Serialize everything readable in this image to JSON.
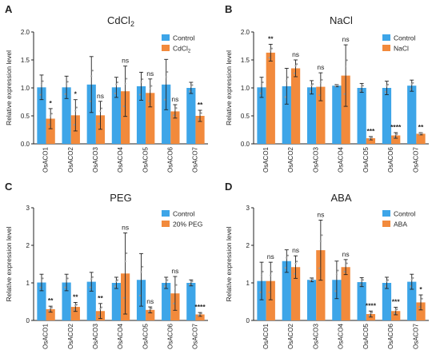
{
  "colors": {
    "control": "#3da5e8",
    "treatment": "#f28a3c"
  },
  "chart_data": [
    {
      "type": "bar",
      "panel": "A",
      "title": "CdCl",
      "title_sub": "2",
      "ylabel": "Relative expression level",
      "ylim": [
        0,
        2.0
      ],
      "yticks": [
        "0.0",
        "0.5",
        "1.0",
        "1.5",
        "2.0"
      ],
      "ytick_values": [
        0,
        0.5,
        1.0,
        1.5,
        2.0
      ],
      "categories": [
        "OsACO1",
        "OsACO2",
        "OsACO3",
        "OsACO4",
        "OsACO5",
        "OsACO6",
        "OsACO7"
      ],
      "legend": {
        "control": "Control",
        "treatment": "CdCl",
        "treatment_sub": "2",
        "position": "top-right"
      },
      "series": [
        {
          "name": "Control",
          "values": [
            1.01,
            1.01,
            1.06,
            1.01,
            1.03,
            1.06,
            1.0
          ],
          "errors": [
            0.22,
            0.2,
            0.5,
            0.18,
            0.25,
            0.45,
            0.1
          ]
        },
        {
          "name": "CdCl2",
          "values": [
            0.45,
            0.51,
            0.51,
            0.94,
            0.91,
            0.58,
            0.5
          ],
          "errors": [
            0.18,
            0.28,
            0.25,
            0.45,
            0.25,
            0.12,
            0.1
          ]
        }
      ],
      "significance": [
        "*",
        "*",
        "ns",
        "ns",
        "ns",
        "ns",
        "**"
      ]
    },
    {
      "type": "bar",
      "panel": "B",
      "title": "NaCl",
      "title_sub": "",
      "ylabel": "Relative expression level",
      "ylim": [
        0,
        2.0
      ],
      "yticks": [
        "0.0",
        "0.5",
        "1.0",
        "1.5",
        "2.0"
      ],
      "ytick_values": [
        0,
        0.5,
        1.0,
        1.5,
        2.0
      ],
      "categories": [
        "OsACO1",
        "OsACO2",
        "OsACO3",
        "OsACO4",
        "OsACO5",
        "OsACO6",
        "OsACO7"
      ],
      "legend": {
        "control": "Control",
        "treatment": "NaCl",
        "treatment_sub": "",
        "position": "top-right"
      },
      "series": [
        {
          "name": "Control",
          "values": [
            1.01,
            1.03,
            1.01,
            1.04,
            1.0,
            1.0,
            1.04
          ],
          "errors": [
            0.18,
            0.32,
            0.12,
            0.02,
            0.08,
            0.12,
            0.1
          ]
        },
        {
          "name": "NaCl",
          "values": [
            1.63,
            1.35,
            1.02,
            1.22,
            0.1,
            0.15,
            0.18
          ],
          "errors": [
            0.15,
            0.15,
            0.25,
            0.55,
            0.03,
            0.05,
            0.02
          ]
        }
      ],
      "significance": [
        "**",
        "ns",
        "ns",
        "ns",
        "***",
        "****",
        "**"
      ]
    },
    {
      "type": "bar",
      "panel": "C",
      "title": "PEG",
      "title_sub": "",
      "ylabel": "Relative expression level",
      "ylim": [
        0,
        3
      ],
      "yticks": [
        "0",
        "1",
        "2",
        "3"
      ],
      "ytick_values": [
        0,
        1,
        2,
        3
      ],
      "categories": [
        "OsACO1",
        "OsACO2",
        "OsACO3",
        "OsACO4",
        "OsACO5",
        "OsACO6",
        "OsACO7"
      ],
      "legend": {
        "control": "Control",
        "treatment": "20% PEG",
        "treatment_sub": "",
        "position": "top-right"
      },
      "series": [
        {
          "name": "Control",
          "values": [
            1.01,
            1.01,
            1.03,
            1.0,
            1.08,
            1.0,
            1.0
          ],
          "errors": [
            0.22,
            0.22,
            0.25,
            0.15,
            0.7,
            0.15,
            0.08
          ]
        },
        {
          "name": "20% PEG",
          "values": [
            0.3,
            0.36,
            0.25,
            1.25,
            0.28,
            0.72,
            0.16
          ],
          "errors": [
            0.08,
            0.12,
            0.2,
            1.08,
            0.08,
            0.45,
            0.05
          ]
        }
      ],
      "significance": [
        "**",
        "**",
        "**",
        "ns",
        "ns",
        "ns",
        "****"
      ]
    },
    {
      "type": "bar",
      "panel": "D",
      "title": "ABA",
      "title_sub": "",
      "ylabel": "Relative expression level",
      "ylim": [
        0,
        3
      ],
      "yticks": [
        "0",
        "1",
        "2",
        "3"
      ],
      "ytick_values": [
        0,
        1,
        2,
        3
      ],
      "categories": [
        "OsACO1",
        "OsACO2",
        "OsACO3",
        "OsACO4",
        "OsACO5",
        "OsACO6",
        "OsACO7"
      ],
      "legend": {
        "control": "Control",
        "treatment": "ABA",
        "treatment_sub": "",
        "position": "top-right"
      },
      "series": [
        {
          "name": "Control",
          "values": [
            1.05,
            1.58,
            1.08,
            1.08,
            1.02,
            1.0,
            1.03
          ],
          "errors": [
            0.5,
            0.3,
            0.05,
            0.5,
            0.12,
            0.15,
            0.2
          ]
        },
        {
          "name": "ABA",
          "values": [
            1.05,
            1.42,
            1.87,
            1.42,
            0.17,
            0.25,
            0.48
          ],
          "errors": [
            0.5,
            0.3,
            0.8,
            0.2,
            0.08,
            0.1,
            0.2
          ]
        }
      ],
      "significance": [
        "ns",
        "ns",
        "ns",
        "ns",
        "****",
        "***",
        "*"
      ]
    }
  ]
}
